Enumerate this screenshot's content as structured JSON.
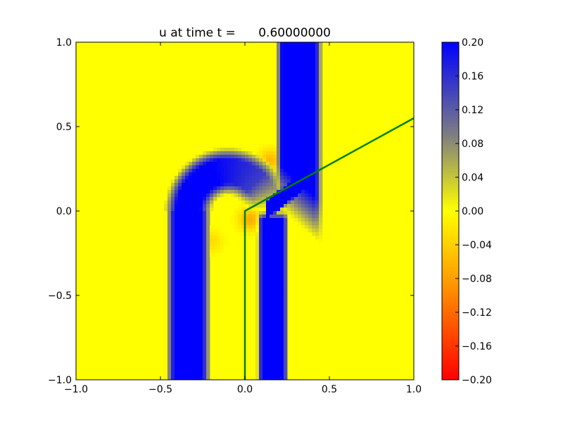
{
  "chart_data": {
    "type": "heatmap",
    "title": "u at time t =      0.60000000",
    "xlabel": "",
    "ylabel": "",
    "xlim": [
      -1.0,
      1.0
    ],
    "ylim": [
      -1.0,
      1.0
    ],
    "x_ticks": [
      "−1.0",
      "−0.5",
      "0.0",
      "0.5",
      "1.0"
    ],
    "x_tick_values": [
      -1.0,
      -0.5,
      0.0,
      0.5,
      1.0
    ],
    "y_ticks": [
      "−1.0",
      "−0.5",
      "0.0",
      "0.5",
      "1.0"
    ],
    "y_tick_values": [
      -1.0,
      -0.5,
      0.0,
      0.5,
      1.0
    ],
    "grid": false,
    "colorbar": {
      "min": -0.2,
      "max": 0.2,
      "ticks": [
        "0.20",
        "0.16",
        "0.12",
        "0.08",
        "0.04",
        "0.00",
        "−0.04",
        "−0.08",
        "−0.12",
        "−0.16",
        "−0.20"
      ],
      "tick_values": [
        0.2,
        0.16,
        0.12,
        0.08,
        0.04,
        0.0,
        -0.04,
        -0.08,
        -0.12,
        -0.16,
        -0.2
      ],
      "colors": {
        "low": "#ff0000",
        "mid_low": "#ffa500",
        "zero": "#ffff00",
        "mid_high": "#808080",
        "high": "#0000ff"
      }
    },
    "field": {
      "background_value": 0.0,
      "left_u_band": {
        "x_outer": [
          -0.42,
          -0.25
        ],
        "bottom_y": -1.0,
        "top_arc_center": [
          -0.1,
          0.0
        ],
        "peak_value": 0.2
      },
      "right_vertical_band": {
        "x": [
          0.1,
          0.23
        ],
        "y_range": [
          -1.0,
          -0.05
        ],
        "peak_value": 0.2
      },
      "upper_vertical_band": {
        "x": [
          0.22,
          0.42
        ],
        "y_range": [
          0.0,
          1.0
        ],
        "peak_value": 0.2
      },
      "negative_patches": [
        {
          "x": 0.15,
          "y": 0.3,
          "value": -0.06
        },
        {
          "x": 0.03,
          "y": -0.05,
          "value": -0.07
        },
        {
          "x": -0.2,
          "y": -0.18,
          "value": -0.03
        }
      ]
    },
    "overlay_lines": [
      {
        "color": "#008000",
        "points": [
          [
            0.0,
            -1.0
          ],
          [
            0.0,
            0.0
          ],
          [
            1.0,
            0.55
          ]
        ]
      }
    ]
  }
}
